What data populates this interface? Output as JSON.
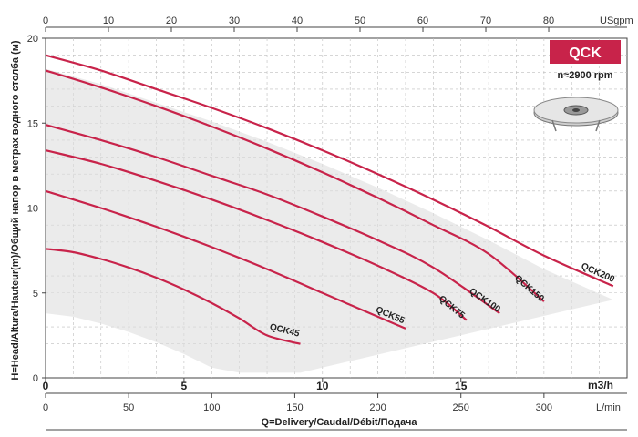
{
  "chart_data": {
    "type": "line",
    "badge": "QCK",
    "speed": "n≈2900 rpm",
    "ylabel": "H=Head/Altura/Hauteur(m)/Общий напор в метрах водного столба (м)",
    "xlabel": "Q=Delivery/Caudal/Débit/Подача",
    "units": {
      "usgpm": "USgpm",
      "m3h": "m3/h",
      "lmin": "L/min"
    },
    "ylim": [
      0,
      20
    ],
    "xlim_m3h": [
      0,
      21
    ],
    "grid": true,
    "y_ticks": [
      "0",
      "5",
      "10",
      "15",
      "20"
    ],
    "top_ticks": [
      "0",
      "10",
      "20",
      "30",
      "40",
      "50",
      "60",
      "70",
      "80"
    ],
    "m3h_ticks": [
      "0",
      "5",
      "10",
      "15"
    ],
    "lmin_ticks": [
      "0",
      "50",
      "100",
      "150",
      "200",
      "250",
      "300"
    ],
    "series": [
      {
        "name": "QCK45",
        "x": [
          0,
          1,
          2,
          3,
          4,
          5,
          6,
          7,
          8,
          9.2
        ],
        "y": [
          7.6,
          7.4,
          7.0,
          6.5,
          5.9,
          5.2,
          4.4,
          3.5,
          2.5,
          2.0
        ]
      },
      {
        "name": "QCK55",
        "x": [
          0,
          2,
          4,
          6,
          8,
          10,
          12,
          13.0
        ],
        "y": [
          11.0,
          10.0,
          8.9,
          7.7,
          6.4,
          5.0,
          3.6,
          2.9
        ]
      },
      {
        "name": "QCK75",
        "x": [
          0,
          2,
          4,
          6,
          8,
          10,
          12,
          14,
          15.2
        ],
        "y": [
          13.4,
          12.6,
          11.6,
          10.5,
          9.3,
          8.0,
          6.6,
          5.0,
          3.4
        ]
      },
      {
        "name": "QCK100",
        "x": [
          0,
          2,
          4,
          6,
          8,
          10,
          12,
          14,
          16.4
        ],
        "y": [
          14.9,
          14.0,
          13.0,
          11.9,
          10.8,
          9.5,
          8.1,
          6.5,
          3.8
        ]
      },
      {
        "name": "QCK150",
        "x": [
          0,
          2,
          4,
          6,
          8,
          10,
          12,
          14,
          16,
          18.0
        ],
        "y": [
          18.1,
          17.1,
          16.0,
          14.8,
          13.5,
          12.1,
          10.6,
          9.0,
          7.3,
          4.5
        ]
      },
      {
        "name": "QCK200",
        "x": [
          0,
          2,
          4,
          6,
          8,
          10,
          12,
          14,
          16,
          18,
          20.5
        ],
        "y": [
          19.0,
          18.1,
          17.0,
          15.9,
          14.7,
          13.4,
          12.0,
          10.5,
          8.9,
          7.2,
          5.4
        ]
      }
    ]
  }
}
